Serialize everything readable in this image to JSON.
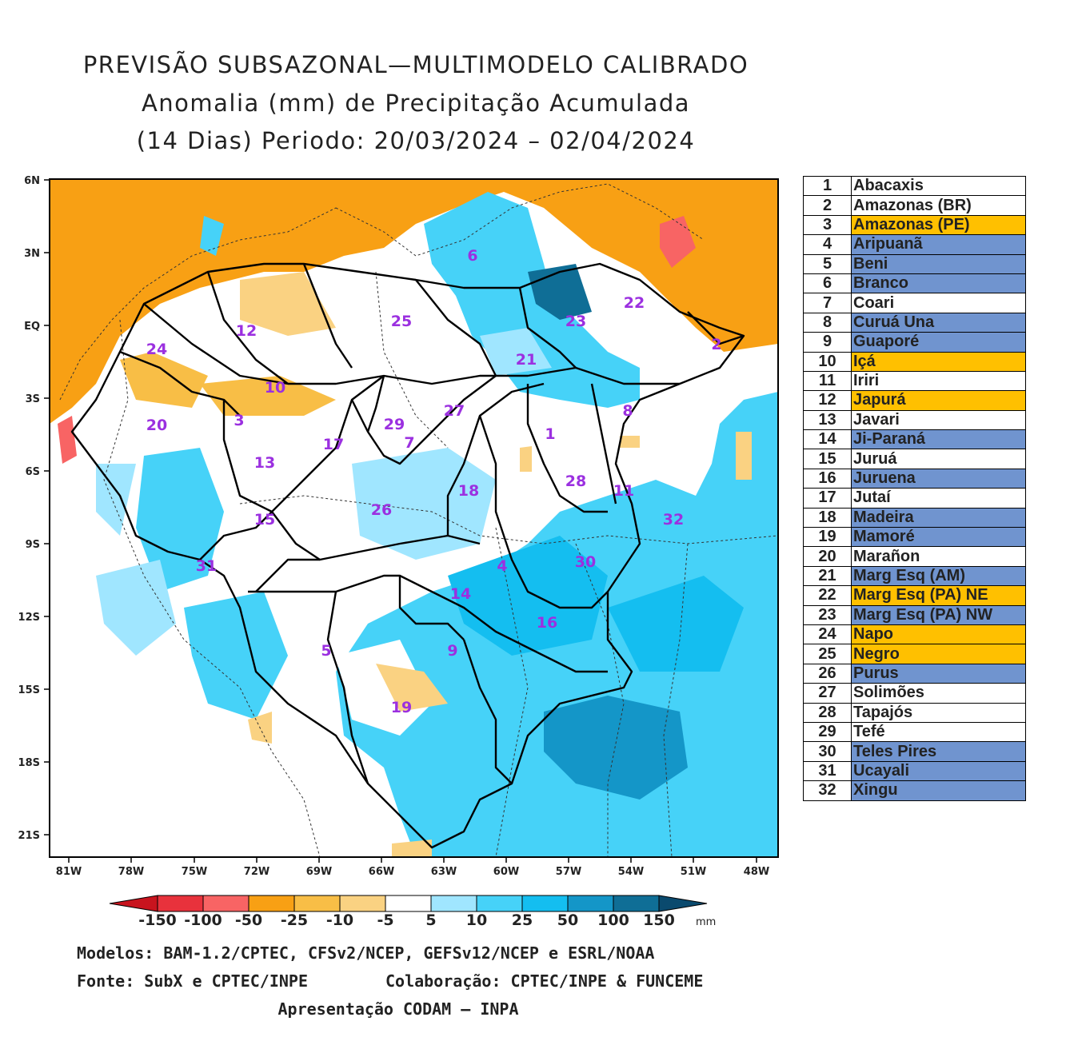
{
  "title": {
    "line1": "PREVISÃO SUBSAZONAL—MULTIMODELO CALIBRADO",
    "line2": "Anomalia (mm) de Precipitação Acumulada",
    "line3": "(14 Dias) Periodo: 20/03/2024 – 02/04/2024"
  },
  "map": {
    "lat_labels": [
      "6N",
      "3N",
      "EQ",
      "3S",
      "6S",
      "9S",
      "12S",
      "15S",
      "18S",
      "21S"
    ],
    "lon_labels": [
      "81W",
      "78W",
      "75W",
      "72W",
      "69W",
      "66W",
      "63W",
      "60W",
      "57W",
      "54W",
      "51W",
      "48W"
    ],
    "basin_numbers": [
      "1",
      "2",
      "3",
      "4",
      "5",
      "6",
      "7",
      "8",
      "9",
      "10",
      "11",
      "12",
      "13",
      "14",
      "15",
      "16",
      "17",
      "18",
      "19",
      "20",
      "21",
      "22",
      "23",
      "24",
      "25",
      "26",
      "27",
      "28",
      "29",
      "30",
      "31",
      "32"
    ]
  },
  "colorbar": {
    "labels": [
      "-150",
      "-100",
      "-50",
      "-25",
      "-10",
      "-5",
      "5",
      "10",
      "25",
      "50",
      "100",
      "150"
    ],
    "unit": "mm",
    "colors": [
      "#c8141e",
      "#e8323c",
      "#f86464",
      "#f8a014",
      "#f8be46",
      "#fad282",
      "#ffffff",
      "#a0e6ff",
      "#46d2f8",
      "#14bef0",
      "#1496c8",
      "#0f6e96",
      "#0a4a6e"
    ]
  },
  "legend": {
    "highlight_colors": {
      "none": "#ffffff",
      "orange": "#ffc000",
      "blue": "#7094cf"
    },
    "rows": [
      {
        "num": "1",
        "name": "Abacaxis",
        "hl": "none"
      },
      {
        "num": "2",
        "name": "Amazonas (BR)",
        "hl": "none"
      },
      {
        "num": "3",
        "name": "Amazonas (PE)",
        "hl": "orange"
      },
      {
        "num": "4",
        "name": "Aripuanã",
        "hl": "blue"
      },
      {
        "num": "5",
        "name": "Beni",
        "hl": "blue"
      },
      {
        "num": "6",
        "name": "Branco",
        "hl": "blue"
      },
      {
        "num": "7",
        "name": "Coari",
        "hl": "none"
      },
      {
        "num": "8",
        "name": "Curuá Una",
        "hl": "blue"
      },
      {
        "num": "9",
        "name": "Guaporé",
        "hl": "blue"
      },
      {
        "num": "10",
        "name": "Içá",
        "hl": "orange"
      },
      {
        "num": "11",
        "name": "Iriri",
        "hl": "none"
      },
      {
        "num": "12",
        "name": "Japurá",
        "hl": "orange"
      },
      {
        "num": "13",
        "name": "Javari",
        "hl": "none"
      },
      {
        "num": "14",
        "name": "Ji-Paraná",
        "hl": "blue"
      },
      {
        "num": "15",
        "name": "Juruá",
        "hl": "none"
      },
      {
        "num": "16",
        "name": "Juruena",
        "hl": "blue"
      },
      {
        "num": "17",
        "name": "Jutaí",
        "hl": "none"
      },
      {
        "num": "18",
        "name": "Madeira",
        "hl": "blue"
      },
      {
        "num": "19",
        "name": "Mamoré",
        "hl": "blue"
      },
      {
        "num": "20",
        "name": "Marañon",
        "hl": "none"
      },
      {
        "num": "21",
        "name": "Marg Esq (AM)",
        "hl": "blue"
      },
      {
        "num": "22",
        "name": "Marg Esq (PA) NE",
        "hl": "orange"
      },
      {
        "num": "23",
        "name": "Marg Esq (PA) NW",
        "hl": "blue"
      },
      {
        "num": "24",
        "name": "Napo",
        "hl": "orange"
      },
      {
        "num": "25",
        "name": "Negro",
        "hl": "orange"
      },
      {
        "num": "26",
        "name": "Purus",
        "hl": "blue"
      },
      {
        "num": "27",
        "name": "Solimões",
        "hl": "none"
      },
      {
        "num": "28",
        "name": "Tapajós",
        "hl": "none"
      },
      {
        "num": "29",
        "name": "Tefé",
        "hl": "none"
      },
      {
        "num": "30",
        "name": "Teles Pires",
        "hl": "blue"
      },
      {
        "num": "31",
        "name": "Ucayali",
        "hl": "blue"
      },
      {
        "num": "32",
        "name": "Xingu",
        "hl": "blue"
      }
    ]
  },
  "footer": {
    "models": "Modelos: BAM-1.2/CPTEC, CFSv2/NCEP, GEFSv12/NCEP e ESRL/NOAA",
    "source": "Fonte: SubX e CPTEC/INPE",
    "collab": "Colaboração: CPTEC/INPE & FUNCEME",
    "presentation": "Apresentação CODAM – INPA"
  }
}
